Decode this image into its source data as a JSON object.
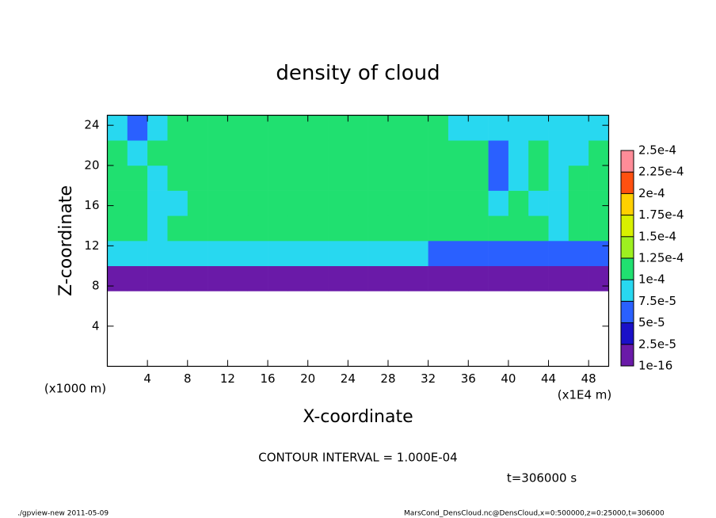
{
  "chart_data": {
    "type": "heatmap",
    "title": "density of cloud",
    "xlabel": "X-coordinate",
    "ylabel": "Z-coordinate",
    "x_unit_label": "(x1E4 m)",
    "y_unit_label": "(x1000 m)",
    "annotations": [
      "CONTOUR INTERVAL = 1.000E-04",
      "t=306000 s"
    ],
    "footer_left": "./gpview-new  2011-05-09",
    "footer_right": "MarsCond_DensCloud.nc@DensCloud,x=0:500000,z=0:25000,t=306000",
    "xlim": [
      0,
      50
    ],
    "ylim": [
      0,
      25
    ],
    "xticks": [
      4,
      8,
      12,
      16,
      20,
      24,
      28,
      32,
      36,
      40,
      44,
      48
    ],
    "yticks": [
      4,
      8,
      12,
      16,
      20,
      24
    ],
    "x": [
      1,
      3,
      5,
      7,
      9,
      11,
      13,
      15,
      17,
      19,
      21,
      23,
      25,
      27,
      29,
      31,
      33,
      35,
      37,
      39,
      41,
      43,
      45,
      47,
      49
    ],
    "y": [
      1.25,
      3.75,
      6.25,
      8.75,
      11.25,
      13.75,
      16.25,
      18.75,
      21.25,
      23.75
    ],
    "z": [
      [
        null,
        null,
        null,
        null,
        null,
        null,
        null,
        null,
        null,
        null,
        null,
        null,
        null,
        null,
        null,
        null,
        null,
        null,
        null,
        null,
        null,
        null,
        null,
        null,
        null
      ],
      [
        null,
        null,
        null,
        null,
        null,
        null,
        null,
        null,
        null,
        null,
        null,
        null,
        null,
        null,
        null,
        null,
        null,
        null,
        null,
        null,
        null,
        null,
        null,
        null,
        null
      ],
      [
        null,
        null,
        null,
        null,
        null,
        null,
        null,
        null,
        null,
        null,
        null,
        null,
        null,
        null,
        null,
        null,
        null,
        null,
        null,
        null,
        null,
        null,
        null,
        null,
        null
      ],
      [
        1e-05,
        1e-05,
        1e-05,
        1e-05,
        1e-05,
        1e-05,
        1e-05,
        1e-05,
        1e-05,
        1e-05,
        1e-05,
        1e-05,
        1e-05,
        1e-05,
        1e-05,
        1e-05,
        1e-05,
        1e-05,
        1e-05,
        1e-05,
        1e-05,
        1e-05,
        1e-05,
        1e-05,
        1e-05
      ],
      [
        8e-05,
        8e-05,
        8e-05,
        8e-05,
        8e-05,
        8e-05,
        8e-05,
        8e-05,
        8e-05,
        8e-05,
        8e-05,
        8e-05,
        8e-05,
        8e-05,
        8e-05,
        8e-05,
        5e-05,
        5e-05,
        5e-05,
        5e-05,
        5e-05,
        5e-05,
        5e-05,
        5e-05,
        5e-05
      ],
      [
        0.00011,
        0.00011,
        8e-05,
        0.00011,
        0.00011,
        0.00011,
        0.00011,
        0.00011,
        0.00011,
        0.00011,
        0.00011,
        0.00011,
        0.00011,
        0.00011,
        0.00011,
        0.00011,
        0.00011,
        0.00011,
        0.00011,
        0.00011,
        0.00011,
        0.00011,
        8e-05,
        0.00011,
        0.00011
      ],
      [
        0.00012,
        0.00012,
        8e-05,
        8e-05,
        0.00012,
        0.00012,
        0.00012,
        0.00012,
        0.00012,
        0.00012,
        0.00012,
        0.00012,
        0.00012,
        0.00012,
        0.00012,
        0.00012,
        0.00012,
        0.00012,
        0.00012,
        8e-05,
        0.00012,
        8e-05,
        9e-05,
        0.00012,
        0.00012
      ],
      [
        0.00012,
        0.00012,
        8e-05,
        0.00012,
        0.00012,
        0.00012,
        0.00012,
        0.00012,
        0.00012,
        0.00012,
        0.00012,
        0.00012,
        0.00012,
        0.00012,
        0.00012,
        0.00012,
        0.00012,
        0.00012,
        0.00012,
        6e-05,
        8e-05,
        0.00012,
        8e-05,
        0.00012,
        0.00012
      ],
      [
        0.000115,
        9e-05,
        0.000115,
        0.000115,
        0.000115,
        0.000115,
        0.000115,
        0.000115,
        0.000115,
        0.000115,
        0.000115,
        0.000115,
        0.000115,
        0.000115,
        0.000115,
        0.000115,
        0.000115,
        0.000115,
        0.000115,
        7e-05,
        8e-05,
        0.000115,
        9e-05,
        9e-05,
        0.000115
      ],
      [
        8e-05,
        5e-05,
        8e-05,
        0.000105,
        0.000105,
        0.000105,
        0.000105,
        0.000105,
        0.000105,
        0.000105,
        0.000105,
        0.000105,
        0.000105,
        0.000105,
        0.000105,
        0.000105,
        0.000105,
        8e-05,
        8e-05,
        8e-05,
        8e-05,
        8e-05,
        8e-05,
        8e-05,
        8e-05
      ]
    ],
    "colorbar": {
      "ticks": [
        {
          "value": 1e-16,
          "label": "1e-16"
        },
        {
          "value": 2.5e-05,
          "label": "2.5e-5"
        },
        {
          "value": 5e-05,
          "label": "5e-5"
        },
        {
          "value": 7.5e-05,
          "label": "7.5e-5"
        },
        {
          "value": 0.0001,
          "label": "1e-4"
        },
        {
          "value": 0.000125,
          "label": "1.25e-4"
        },
        {
          "value": 0.00015,
          "label": "1.5e-4"
        },
        {
          "value": 0.000175,
          "label": "1.75e-4"
        },
        {
          "value": 0.0002,
          "label": "2e-4"
        },
        {
          "value": 0.000225,
          "label": "2.25e-4"
        },
        {
          "value": 0.00025,
          "label": "2.5e-4"
        }
      ],
      "colors": [
        "#6a1aa8",
        "#1a10c8",
        "#2a60ff",
        "#28d8f0",
        "#20e070",
        "#9ef020",
        "#d8f000",
        "#ffd000",
        "#ff5010",
        "#ff8c98"
      ]
    }
  }
}
